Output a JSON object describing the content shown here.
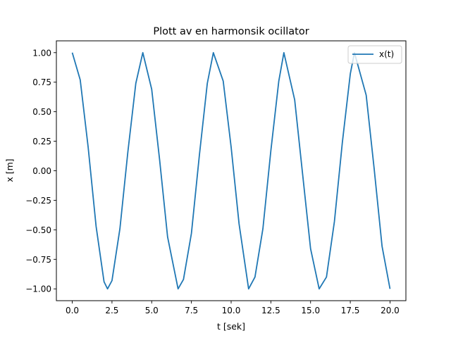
{
  "chart_data": {
    "type": "line",
    "title": "Plott av en harmonsik ocillator",
    "xlabel": "t [sek]",
    "ylabel": "x [m]",
    "xlim": [
      -1.0,
      21.0
    ],
    "ylim": [
      -1.1,
      1.1
    ],
    "xticks": [
      0.0,
      2.5,
      5.0,
      7.5,
      10.0,
      12.5,
      15.0,
      17.5,
      20.0
    ],
    "xtick_labels": [
      "0.0",
      "2.5",
      "5.0",
      "7.5",
      "10.0",
      "12.5",
      "15.0",
      "17.5",
      "20.0"
    ],
    "yticks": [
      -1.0,
      -0.75,
      -0.5,
      -0.25,
      0.0,
      0.25,
      0.5,
      0.75,
      1.0
    ],
    "ytick_labels": [
      "−1.00",
      "−0.75",
      "−0.50",
      "−0.25",
      "0.00",
      "0.25",
      "0.50",
      "0.75",
      "1.00"
    ],
    "grid": false,
    "legend_position": "top-right",
    "series": [
      {
        "name": "x(t)",
        "color": "#1f77b4",
        "x": [
          0.0,
          0.5,
          1.0,
          1.5,
          2.0,
          2.22,
          2.5,
          3.0,
          3.5,
          4.0,
          4.44,
          5.0,
          5.5,
          6.0,
          6.66,
          7.0,
          7.5,
          8.0,
          8.5,
          8.88,
          9.5,
          10.0,
          10.5,
          11.1,
          11.5,
          12.0,
          12.5,
          13.0,
          13.32,
          14.0,
          14.5,
          15.0,
          15.54,
          16.0,
          16.5,
          17.0,
          17.5,
          17.76,
          18.5,
          19.0,
          19.5,
          20.0
        ],
        "y": [
          1.0,
          0.77,
          0.2,
          -0.47,
          -0.94,
          -1.0,
          -0.93,
          -0.49,
          0.16,
          0.74,
          1.0,
          0.69,
          0.09,
          -0.56,
          -1.0,
          -0.92,
          -0.53,
          0.13,
          0.74,
          1.0,
          0.76,
          0.2,
          -0.45,
          -1.0,
          -0.9,
          -0.49,
          0.17,
          0.76,
          1.0,
          0.6,
          -0.03,
          -0.66,
          -1.0,
          -0.9,
          -0.43,
          0.24,
          0.82,
          1.0,
          0.64,
          0.02,
          -0.64,
          -1.0
        ]
      }
    ]
  }
}
